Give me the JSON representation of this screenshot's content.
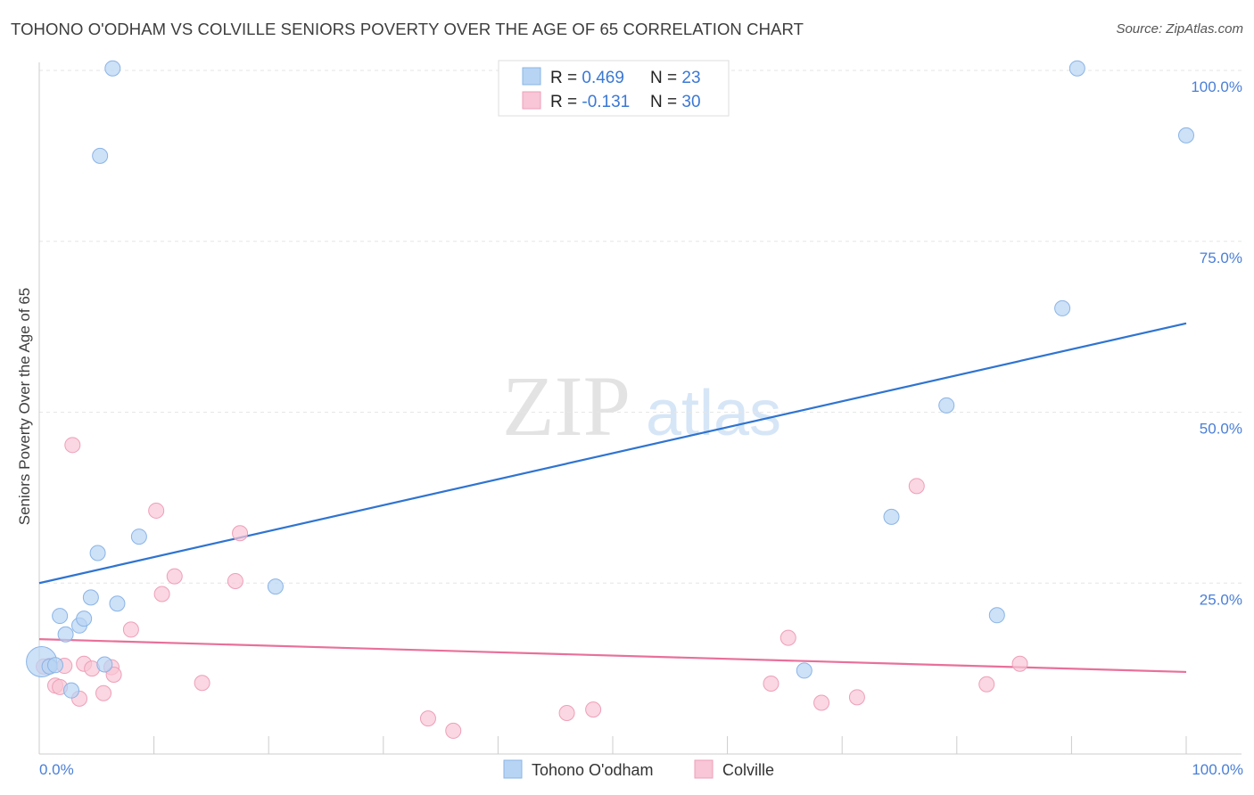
{
  "header": {
    "title": "TOHONO O'ODHAM VS COLVILLE SENIORS POVERTY OVER THE AGE OF 65 CORRELATION CHART",
    "source": "Source: ZipAtlas.com"
  },
  "watermark": {
    "zip": "ZIP",
    "atlas": "atlas"
  },
  "chart_data": {
    "type": "scatter",
    "title": "TOHONO O'ODHAM VS COLVILLE SENIORS POVERTY OVER THE AGE OF 65 CORRELATION CHART",
    "xlabel": "",
    "ylabel": "Seniors Poverty Over the Age of 65",
    "xlim": [
      0,
      100
    ],
    "ylim": [
      0,
      102
    ],
    "x_tick_labels": {
      "left": "0.0%",
      "right": "100.0%"
    },
    "y_ticks": [
      {
        "value": 25,
        "label": "25.0%"
      },
      {
        "value": 50,
        "label": "50.0%"
      },
      {
        "value": 75,
        "label": "75.0%"
      },
      {
        "value": 100,
        "label": "100.0%"
      }
    ],
    "grid": true,
    "legend": {
      "stats": [
        {
          "r_label": "R = ",
          "r_value": "0.469",
          "n_label": "N = ",
          "n_value": "23"
        },
        {
          "r_label": "R = ",
          "r_value": "-0.131",
          "n_label": "N = ",
          "n_value": "30"
        }
      ],
      "placement": "top-center"
    },
    "series": [
      {
        "name": "Tohono O'odham",
        "color_fill": "#b8d4f4",
        "color_stroke": "#8ab4e6",
        "line_color": "#2f74d0",
        "trend": {
          "x0": 0,
          "y0": 25.0,
          "x1": 100,
          "y1": 63.0
        },
        "points": [
          {
            "x": 0.2,
            "y": 13.5,
            "big": true
          },
          {
            "x": 0.9,
            "y": 12.8
          },
          {
            "x": 1.4,
            "y": 13.0
          },
          {
            "x": 1.8,
            "y": 20.2
          },
          {
            "x": 2.3,
            "y": 17.5
          },
          {
            "x": 2.8,
            "y": 9.3
          },
          {
            "x": 3.5,
            "y": 18.8
          },
          {
            "x": 3.9,
            "y": 19.8
          },
          {
            "x": 4.5,
            "y": 22.9
          },
          {
            "x": 5.1,
            "y": 29.4
          },
          {
            "x": 5.3,
            "y": 87.5
          },
          {
            "x": 5.7,
            "y": 13.1
          },
          {
            "x": 6.4,
            "y": 100.3
          },
          {
            "x": 6.8,
            "y": 22.0
          },
          {
            "x": 8.7,
            "y": 31.8
          },
          {
            "x": 20.6,
            "y": 24.5
          },
          {
            "x": 66.7,
            "y": 12.2
          },
          {
            "x": 74.3,
            "y": 34.7
          },
          {
            "x": 79.1,
            "y": 51.0
          },
          {
            "x": 83.5,
            "y": 20.3
          },
          {
            "x": 89.2,
            "y": 65.2
          },
          {
            "x": 90.5,
            "y": 100.3
          },
          {
            "x": 100.0,
            "y": 90.5
          }
        ]
      },
      {
        "name": "Colville",
        "color_fill": "#f8c6d6",
        "color_stroke": "#ee9fb8",
        "line_color": "#e8709a",
        "trend": {
          "x0": 0,
          "y0": 16.8,
          "x1": 100,
          "y1": 12.0
        },
        "points": [
          {
            "x": 0.4,
            "y": 12.8
          },
          {
            "x": 1.4,
            "y": 10.0
          },
          {
            "x": 1.8,
            "y": 9.8
          },
          {
            "x": 2.2,
            "y": 12.9
          },
          {
            "x": 2.9,
            "y": 45.2
          },
          {
            "x": 3.5,
            "y": 8.1
          },
          {
            "x": 3.9,
            "y": 13.2
          },
          {
            "x": 4.6,
            "y": 12.5
          },
          {
            "x": 5.6,
            "y": 8.9
          },
          {
            "x": 6.3,
            "y": 12.7
          },
          {
            "x": 6.5,
            "y": 11.6
          },
          {
            "x": 8.0,
            "y": 18.2
          },
          {
            "x": 10.2,
            "y": 35.6
          },
          {
            "x": 10.7,
            "y": 23.4
          },
          {
            "x": 11.8,
            "y": 26.0
          },
          {
            "x": 14.2,
            "y": 10.4
          },
          {
            "x": 17.1,
            "y": 25.3
          },
          {
            "x": 17.5,
            "y": 32.3
          },
          {
            "x": 33.9,
            "y": 5.2
          },
          {
            "x": 36.1,
            "y": 3.4
          },
          {
            "x": 46.0,
            "y": 6.0
          },
          {
            "x": 48.3,
            "y": 6.5
          },
          {
            "x": 63.8,
            "y": 10.3
          },
          {
            "x": 65.3,
            "y": 17.0
          },
          {
            "x": 68.2,
            "y": 7.5
          },
          {
            "x": 71.3,
            "y": 8.3
          },
          {
            "x": 76.5,
            "y": 39.2
          },
          {
            "x": 82.6,
            "y": 10.2
          },
          {
            "x": 85.5,
            "y": 13.2
          },
          {
            "x": 0.9,
            "y": 12.9
          }
        ]
      }
    ]
  }
}
